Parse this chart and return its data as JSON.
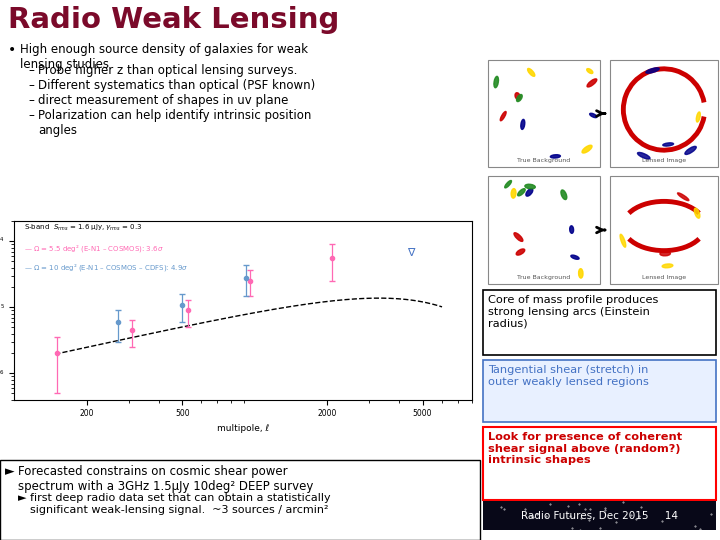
{
  "title": "Radio Weak Lensing",
  "title_color": "#7B0A2A",
  "bg_color": "#FFFFFF",
  "bullet_text": "High enough source density of galaxies for weak\nlensing studies",
  "sub_bullets": [
    "Probe higher z than optical lensing surveys.",
    "Different systematics than optical (PSF known)",
    "direct measurement of shapes in uv plane",
    "Polarization can help identify intrinsic position\nangles"
  ],
  "box1_text": "Core of mass profile produces\nstrong lensing arcs (Einstein\nradius)",
  "box1_border": "#000000",
  "box1_bg": "#FFFFFF",
  "box1_text_color": "#000000",
  "box2_text": "Tangential shear (stretch) in\nouter weakly lensed regions",
  "box2_border": "#4472C4",
  "box2_bg": "#E8F0FF",
  "box2_text_color": "#4472C4",
  "box3_text": "Look for presence of coherent\nshear signal above (random?)\nintrinsic shapes",
  "box3_border": "#FF0000",
  "box3_bg": "#FFFFFF",
  "box3_text_color": "#CC0000",
  "footer_text1": "Forecasted constrains on cosmic shear power\nspectrum with a 3GHz 1.5μJy 10deg² DEEP survey",
  "footer_text2": "first deep radio data set that can obtain a statistically\nsignificant weak-lensing signal.  ~3 sources / arcmin²",
  "slide_footer": "Radio Futures, Dec 2015",
  "slide_number": "14",
  "slide_footer_bg": "#1A1A3A",
  "footer_box_border": "#000000"
}
